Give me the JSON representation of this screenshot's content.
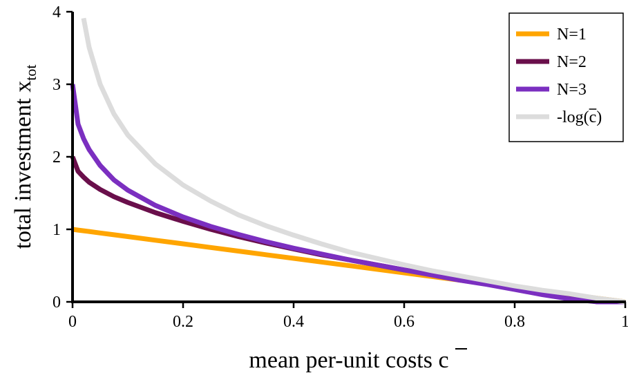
{
  "chart_data": {
    "type": "line",
    "xlabel": "mean per-unit costs  c",
    "ylabel": "total investment  x",
    "ylabel_subscript": "tot",
    "xlim": [
      0,
      1
    ],
    "ylim": [
      0,
      4
    ],
    "xticks": [
      0,
      0.2,
      0.4,
      0.6,
      0.8,
      1
    ],
    "xtick_labels": [
      "0",
      "0.2",
      "0.4",
      "0.6",
      "0.8",
      "1"
    ],
    "yticks": [
      0,
      1,
      2,
      3,
      4
    ],
    "ytick_labels": [
      "0",
      "1",
      "2",
      "3",
      "4"
    ],
    "grid": false,
    "legend_position": "top-right",
    "x": [
      0,
      0.01,
      0.02,
      0.03,
      0.05,
      0.075,
      0.1,
      0.15,
      0.2,
      0.25,
      0.3,
      0.35,
      0.4,
      0.45,
      0.5,
      0.55,
      0.6,
      0.65,
      0.7,
      0.75,
      0.8,
      0.85,
      0.9,
      0.95,
      1.0
    ],
    "series": [
      {
        "name": "N=1",
        "color": "#FFA500",
        "values": [
          1.0,
          0.99,
          0.98,
          0.97,
          0.95,
          0.925,
          0.9,
          0.85,
          0.8,
          0.75,
          0.7,
          0.65,
          0.6,
          0.55,
          0.5,
          0.45,
          0.4,
          0.35,
          0.3,
          0.25,
          0.2,
          0.15,
          0.1,
          0.05,
          0.0
        ]
      },
      {
        "name": "N=2",
        "color": "#6A0F4B",
        "values": [
          2.0,
          1.8,
          1.72,
          1.65,
          1.55,
          1.45,
          1.37,
          1.23,
          1.11,
          1.0,
          0.9,
          0.81,
          0.73,
          0.65,
          0.58,
          0.51,
          0.44,
          0.38,
          0.31,
          0.25,
          0.19,
          0.13,
          0.06,
          0.0,
          0.0
        ]
      },
      {
        "name": "N=3",
        "color": "#7B2FC0",
        "values": [
          3.0,
          2.45,
          2.25,
          2.1,
          1.88,
          1.68,
          1.54,
          1.33,
          1.17,
          1.04,
          0.93,
          0.83,
          0.74,
          0.66,
          0.58,
          0.51,
          0.44,
          0.37,
          0.3,
          0.24,
          0.17,
          0.1,
          0.04,
          0.0,
          0.0
        ]
      },
      {
        "name": "-log(c)",
        "color": "#DCDCDC",
        "values": [
          null,
          null,
          3.91,
          3.51,
          3.0,
          2.59,
          2.3,
          1.9,
          1.61,
          1.39,
          1.2,
          1.05,
          0.92,
          0.8,
          0.69,
          0.6,
          0.51,
          0.43,
          0.36,
          0.29,
          0.22,
          0.16,
          0.11,
          0.05,
          0.0
        ]
      }
    ]
  }
}
